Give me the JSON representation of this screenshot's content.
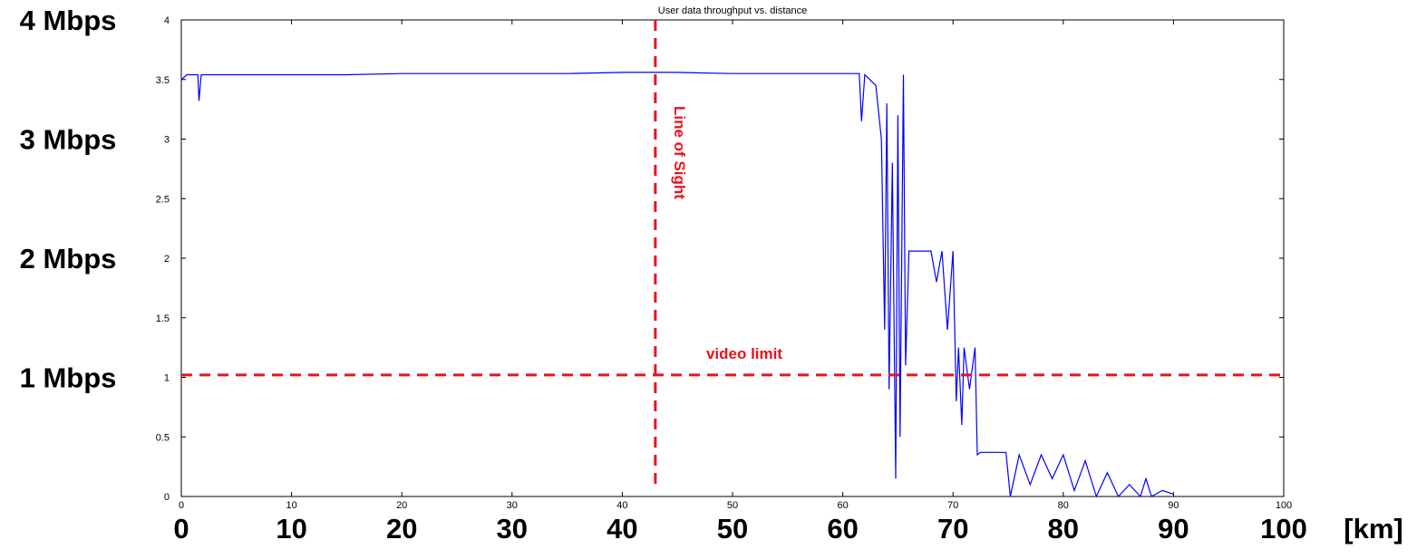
{
  "chart_data": {
    "type": "line",
    "title": "User data throughput vs. distance",
    "xlabel": "",
    "ylabel": "",
    "xlim": [
      0,
      100
    ],
    "ylim": [
      0,
      4
    ],
    "x_ticks": [
      "0",
      "10",
      "20",
      "30",
      "40",
      "50",
      "60",
      "70",
      "80",
      "90",
      "100"
    ],
    "y_ticks": [
      "0",
      "0.5",
      "1",
      "1.5",
      "2",
      "2.5",
      "3",
      "3.5",
      "4"
    ],
    "big_y_labels": [
      {
        "value": 4,
        "text": "4 Mbps"
      },
      {
        "value": 3,
        "text": "3 Mbps"
      },
      {
        "value": 2,
        "text": "2 Mbps"
      },
      {
        "value": 1,
        "text": "1 Mbps"
      }
    ],
    "big_x_labels": [
      "0",
      "10",
      "20",
      "30",
      "40",
      "50",
      "60",
      "70",
      "80",
      "90",
      "100"
    ],
    "big_x_unit": "[km]",
    "grid": false,
    "series": [
      {
        "color": "#0000ff",
        "x": [
          0,
          0.5,
          1.5,
          1.6,
          1.8,
          5,
          10,
          15,
          20,
          25,
          30,
          35,
          40,
          43,
          45,
          50,
          55,
          60,
          61.5,
          61.7,
          62,
          63,
          63.5,
          63.8,
          64.0,
          64.2,
          64.5,
          64.8,
          65.0,
          65.2,
          65.5,
          65.7,
          66,
          67,
          68,
          68.5,
          69,
          69.5,
          70,
          70.3,
          70.5,
          70.8,
          71,
          71.5,
          72,
          72.2,
          72.5,
          73,
          74,
          74.8,
          75.2,
          76,
          77,
          78,
          79,
          80,
          81,
          82,
          83,
          84,
          85,
          86,
          87,
          87.5,
          88,
          89,
          90
        ],
        "y": [
          3.5,
          3.54,
          3.54,
          3.32,
          3.54,
          3.54,
          3.54,
          3.54,
          3.55,
          3.55,
          3.55,
          3.55,
          3.56,
          3.56,
          3.56,
          3.55,
          3.55,
          3.55,
          3.55,
          3.15,
          3.54,
          3.45,
          3.0,
          1.4,
          3.3,
          0.9,
          2.8,
          0.15,
          3.2,
          0.5,
          3.54,
          1.1,
          2.06,
          2.06,
          2.06,
          1.8,
          2.06,
          1.4,
          2.06,
          0.8,
          1.25,
          0.6,
          1.25,
          0.9,
          1.25,
          0.35,
          0.37,
          0.37,
          0.37,
          0.37,
          0.0,
          0.35,
          0.1,
          0.35,
          0.15,
          0.35,
          0.05,
          0.3,
          0.0,
          0.2,
          0.0,
          0.1,
          0.0,
          0.15,
          0.0,
          0.05,
          0.02
        ]
      }
    ],
    "annotations": [
      {
        "type": "vline",
        "x": 43,
        "text": "Line of Sight",
        "color": "#e8141b"
      },
      {
        "type": "hline",
        "y": 1.02,
        "text": "video limit",
        "color": "#e8141b"
      }
    ]
  }
}
